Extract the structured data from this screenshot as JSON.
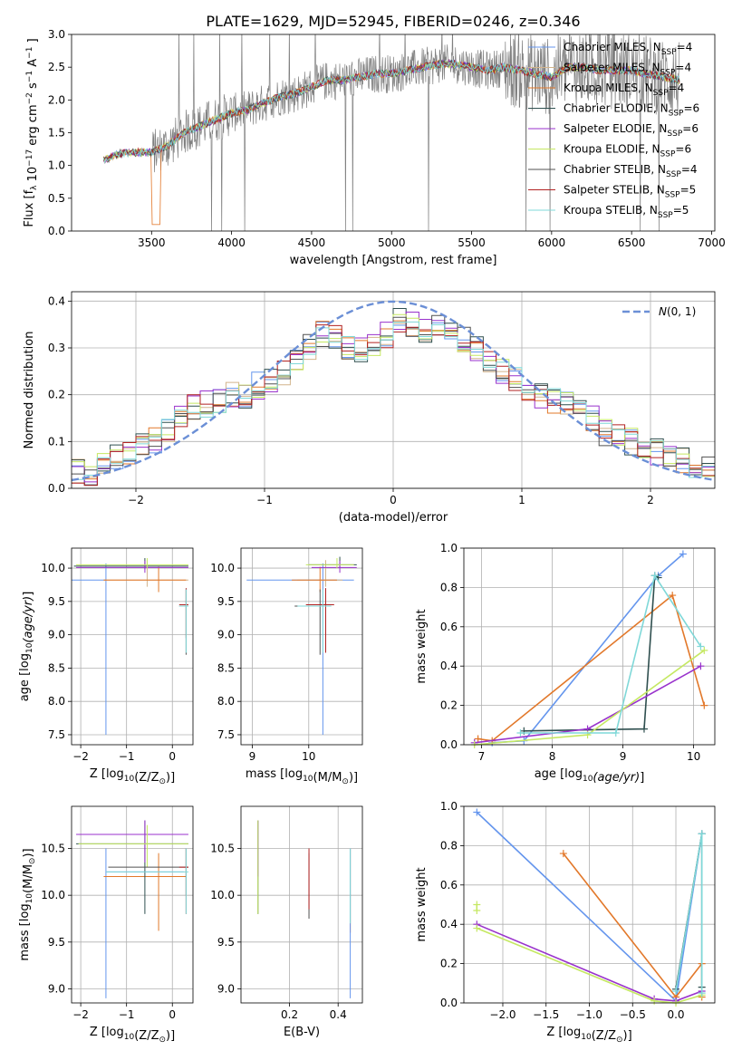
{
  "figure": {
    "title": "PLATE=1629, MJD=52945, FIBERID=0246, z=0.346"
  },
  "chart_data": [
    {
      "type": "line",
      "panel": "spectrum",
      "xlabel": "wavelength [Angstrom, rest frame]",
      "ylabel": "Flux [f_λ 10^-17 erg cm^-2 s^-1 A^-1]",
      "xlim": [
        3000,
        7020
      ],
      "ylim": [
        0,
        3.0
      ],
      "xticks": [
        3500,
        4000,
        4500,
        5000,
        5500,
        6000,
        6500,
        7000
      ],
      "yticks": [
        0.0,
        0.5,
        1.0,
        1.5,
        2.0,
        2.5,
        3.0
      ],
      "grid": false,
      "legend_placement": "top-right",
      "observed_spectrum": {
        "color": "#808080",
        "x": [
          3200,
          3300,
          3400,
          3500,
          3600,
          3700,
          3800,
          3900,
          4000,
          4100,
          4200,
          4300,
          4400,
          4500,
          4600,
          4700,
          4800,
          4900,
          5000,
          5100,
          5200,
          5300,
          5400,
          5500,
          5600,
          5700,
          5800,
          5900,
          6000,
          6100,
          6200,
          6300,
          6400,
          6500,
          6600,
          6700,
          6800
        ],
        "y": [
          1.08,
          1.18,
          1.2,
          1.2,
          1.3,
          1.5,
          1.6,
          1.7,
          1.8,
          1.85,
          1.95,
          2.05,
          2.1,
          2.2,
          2.3,
          2.3,
          2.35,
          2.4,
          2.4,
          2.45,
          2.5,
          2.55,
          2.55,
          2.5,
          2.45,
          2.5,
          2.45,
          2.4,
          2.35,
          2.5,
          2.5,
          2.45,
          2.45,
          2.45,
          2.4,
          2.35,
          2.3
        ]
      },
      "series": [
        {
          "label": "Chabrier MILES, N",
          "sub": "SSP",
          "suffix": "=4",
          "color": "#6495ed"
        },
        {
          "label": "Salpeter MILES, N",
          "sub": "SSP",
          "suffix": "=4",
          "color": "#d2b48c"
        },
        {
          "label": "Kroupa MILES, N",
          "sub": "SSP",
          "suffix": "=4",
          "color": "#e2782a"
        },
        {
          "label": "Chabrier ELODIE, N",
          "sub": "SSP",
          "suffix": "=6",
          "color": "#2f4f4f"
        },
        {
          "label": "Salpeter ELODIE, N",
          "sub": "SSP",
          "suffix": "=6",
          "color": "#9932cc"
        },
        {
          "label": "Kroupa ELODIE, N",
          "sub": "SSP",
          "suffix": "=6",
          "color": "#c5e862"
        },
        {
          "label": "Chabrier STELIB, N",
          "sub": "SSP",
          "suffix": "=4",
          "color": "#505050"
        },
        {
          "label": "Salpeter STELIB, N",
          "sub": "SSP",
          "suffix": "=5",
          "color": "#b22222"
        },
        {
          "label": "Kroupa STELIB, N",
          "sub": "SSP",
          "suffix": "=5",
          "color": "#7fd8d8"
        }
      ]
    },
    {
      "type": "line",
      "panel": "residual_histogram",
      "xlabel": "(data-model)/error",
      "ylabel": "Normed distribution",
      "xlim": [
        -2.5,
        2.5
      ],
      "ylim": [
        0,
        0.42
      ],
      "xticks": [
        -2,
        -1,
        0,
        1,
        2
      ],
      "yticks": [
        0.0,
        0.1,
        0.2,
        0.3,
        0.4
      ],
      "grid": true,
      "legend_placement": "top-right",
      "reference_curve": {
        "label": "N(0,1)",
        "color": "#6b8fd6",
        "style": "dashed",
        "mean": 0,
        "sigma": 1
      },
      "bin_width": 0.1,
      "histogram": {
        "x": [
          -2.5,
          -2.4,
          -2.3,
          -2.2,
          -2.1,
          -2.0,
          -1.9,
          -1.8,
          -1.7,
          -1.6,
          -1.5,
          -1.4,
          -1.3,
          -1.2,
          -1.1,
          -1.0,
          -0.9,
          -0.8,
          -0.7,
          -0.6,
          -0.5,
          -0.4,
          -0.3,
          -0.2,
          -0.1,
          0.0,
          0.1,
          0.2,
          0.3,
          0.4,
          0.5,
          0.6,
          0.7,
          0.8,
          0.9,
          1.0,
          1.1,
          1.2,
          1.3,
          1.4,
          1.5,
          1.6,
          1.7,
          1.8,
          1.9,
          2.0,
          2.1,
          2.2,
          2.3,
          2.4
        ],
        "y": [
          0.04,
          0.035,
          0.045,
          0.07,
          0.08,
          0.09,
          0.1,
          0.13,
          0.15,
          0.17,
          0.18,
          0.19,
          0.2,
          0.2,
          0.22,
          0.23,
          0.25,
          0.28,
          0.3,
          0.33,
          0.32,
          0.3,
          0.3,
          0.31,
          0.33,
          0.36,
          0.35,
          0.34,
          0.35,
          0.33,
          0.32,
          0.3,
          0.27,
          0.25,
          0.23,
          0.21,
          0.2,
          0.19,
          0.18,
          0.17,
          0.15,
          0.12,
          0.12,
          0.1,
          0.09,
          0.08,
          0.07,
          0.06,
          0.05,
          0.045
        ]
      }
    },
    {
      "type": "scatter",
      "panel": "age_vs_Z",
      "xlabel": "Z [log10(Z/Z⊙)]",
      "ylabel": "age  [log10(age/yr)]",
      "xlim": [
        -2.2,
        0.45
      ],
      "ylim": [
        7.35,
        10.3
      ],
      "xticks": [
        -2,
        -1,
        0
      ],
      "yticks": [
        7.5,
        8.0,
        8.5,
        9.0,
        9.5,
        10.0
      ],
      "grid": true,
      "points": [
        {
          "series": 0,
          "x": -1.45,
          "y": 9.82,
          "xerr": [
            0.75,
            0.0
          ],
          "yerr": [
            2.32,
            0.25
          ]
        },
        {
          "series": 1,
          "x": -0.55,
          "y": 9.82,
          "xerr": [
            0.95,
            0.9
          ],
          "yerr": [
            0.1,
            0.3
          ]
        },
        {
          "series": 2,
          "x": -0.3,
          "y": 9.82,
          "xerr": [
            1.2,
            0.6
          ],
          "yerr": [
            0.18,
            0.2
          ]
        },
        {
          "series": 3,
          "x": -0.6,
          "y": 10.03,
          "xerr": [
            1.55,
            0.95
          ],
          "yerr": [
            0.05,
            0.12
          ]
        },
        {
          "series": 4,
          "x": -0.6,
          "y": 10.01,
          "xerr": [
            1.5,
            0.95
          ],
          "yerr": [
            0.08,
            0.1
          ]
        },
        {
          "series": 5,
          "x": -0.55,
          "y": 10.05,
          "xerr": [
            1.55,
            0.9
          ],
          "yerr": [
            0.05,
            0.1
          ]
        },
        {
          "series": 6,
          "x": 0.3,
          "y": 9.43,
          "xerr": [
            0.15,
            0.05
          ],
          "yerr": [
            0.73,
            0.25
          ]
        },
        {
          "series": 7,
          "x": 0.3,
          "y": 9.45,
          "xerr": [
            0.15,
            0.05
          ],
          "yerr": [
            0.5,
            0.25
          ]
        },
        {
          "series": 8,
          "x": 0.3,
          "y": 9.43,
          "xerr": [
            0.15,
            0.05
          ],
          "yerr": [
            0.7,
            0.25
          ]
        }
      ]
    },
    {
      "type": "scatter",
      "panel": "age_vs_mass",
      "xlabel": "mass [log10(M/M⊙)]",
      "ylabel": "",
      "xlim": [
        8.8,
        10.95
      ],
      "ylim": [
        7.35,
        10.3
      ],
      "xticks": [
        9,
        10
      ],
      "yticks": [
        7.5,
        8.0,
        8.5,
        9.0,
        9.5,
        10.0
      ],
      "grid": true,
      "points": [
        {
          "series": 0,
          "x": 10.25,
          "y": 9.82,
          "xerr": [
            1.35,
            0.55
          ],
          "yerr": [
            2.32,
            0.25
          ]
        },
        {
          "series": 1,
          "x": 10.3,
          "y": 9.82,
          "xerr": [
            0.5,
            0.3
          ],
          "yerr": [
            0.1,
            0.3
          ]
        },
        {
          "series": 2,
          "x": 10.2,
          "y": 9.82,
          "xerr": [
            0.5,
            0.3
          ],
          "yerr": [
            0.18,
            0.2
          ]
        },
        {
          "series": 3,
          "x": 10.55,
          "y": 10.05,
          "xerr": [
            0.55,
            0.3
          ],
          "yerr": [
            0.05,
            0.12
          ]
        },
        {
          "series": 4,
          "x": 10.55,
          "y": 10.01,
          "xerr": [
            0.5,
            0.3
          ],
          "yerr": [
            0.08,
            0.1
          ]
        },
        {
          "series": 5,
          "x": 10.5,
          "y": 10.05,
          "xerr": [
            0.55,
            0.3
          ],
          "yerr": [
            0.05,
            0.1
          ]
        },
        {
          "series": 6,
          "x": 10.2,
          "y": 9.43,
          "xerr": [
            0.45,
            0.15
          ],
          "yerr": [
            0.73,
            0.25
          ]
        },
        {
          "series": 7,
          "x": 10.3,
          "y": 9.45,
          "xerr": [
            0.35,
            0.15
          ],
          "yerr": [
            0.72,
            0.25
          ]
        },
        {
          "series": 8,
          "x": 10.25,
          "y": 9.43,
          "xerr": [
            0.45,
            0.15
          ],
          "yerr": [
            0.7,
            0.25
          ]
        }
      ]
    },
    {
      "type": "line",
      "panel": "mass_weight_vs_age",
      "xlabel": "age  [log10(age/yr)]",
      "ylabel": "mass weight",
      "xlim": [
        6.75,
        10.3
      ],
      "ylim": [
        0,
        1.0
      ],
      "xticks": [
        7,
        8,
        9,
        10
      ],
      "yticks": [
        0.0,
        0.2,
        0.4,
        0.6,
        0.8,
        1.0
      ],
      "grid": true,
      "lines": [
        {
          "series": 0,
          "x": [
            7.15,
            7.6,
            9.5,
            9.85
          ],
          "y": [
            0.01,
            0.02,
            0.86,
            0.97
          ]
        },
        {
          "series": 2,
          "x": [
            6.95,
            7.15,
            9.7,
            10.15
          ],
          "y": [
            0.03,
            0.02,
            0.76,
            0.2
          ]
        },
        {
          "series": 3,
          "x": [
            7.6,
            9.3,
            9.45,
            9.5
          ],
          "y": [
            0.07,
            0.08,
            0.86,
            0.85
          ]
        },
        {
          "series": 4,
          "x": [
            6.9,
            8.5,
            10.1
          ],
          "y": [
            0.01,
            0.08,
            0.4
          ]
        },
        {
          "series": 5,
          "x": [
            6.9,
            8.5,
            10.15
          ],
          "y": [
            0.0,
            0.05,
            0.48
          ]
        },
        {
          "series": 8,
          "x": [
            7.55,
            8.9,
            9.45,
            10.1
          ],
          "y": [
            0.06,
            0.06,
            0.86,
            0.5
          ]
        }
      ]
    },
    {
      "type": "scatter",
      "panel": "mass_vs_Z",
      "xlabel": "Z [log10(Z/Z⊙)]",
      "ylabel": "mass [log10(M/M⊙)]",
      "xlim": [
        -2.2,
        0.45
      ],
      "ylim": [
        8.85,
        10.95
      ],
      "xticks": [
        -2,
        -1,
        0
      ],
      "yticks": [
        9.0,
        9.5,
        10.0,
        10.5
      ],
      "grid": true,
      "points": [
        {
          "series": 0,
          "x": -1.45,
          "y": 10.25,
          "xerr": [
            0.0,
            1.7
          ],
          "yerr": [
            1.35,
            0.25
          ]
        },
        {
          "series": 2,
          "x": -0.3,
          "y": 10.2,
          "xerr": [
            1.2,
            0.6
          ],
          "yerr": [
            0.58,
            0.25
          ]
        },
        {
          "series": 3,
          "x": -0.6,
          "y": 10.55,
          "xerr": [
            1.5,
            0.95
          ],
          "yerr": [
            0.75,
            0.25
          ]
        },
        {
          "series": 4,
          "x": -0.6,
          "y": 10.65,
          "xerr": [
            1.5,
            0.95
          ],
          "yerr": [
            0.3,
            0.15
          ]
        },
        {
          "series": 5,
          "x": -0.55,
          "y": 10.55,
          "xerr": [
            1.5,
            0.9
          ],
          "yerr": [
            0.25,
            0.2
          ]
        },
        {
          "series": 6,
          "x": 0.3,
          "y": 10.3,
          "xerr": [
            1.7,
            0.05
          ],
          "yerr": [
            0.3,
            0.2
          ]
        },
        {
          "series": 7,
          "x": 0.3,
          "y": 10.3,
          "xerr": [
            0.15,
            0.05
          ],
          "yerr": [
            0.5,
            0.2
          ]
        },
        {
          "series": 8,
          "x": 0.3,
          "y": 10.25,
          "xerr": [
            1.75,
            0.05
          ],
          "yerr": [
            0.45,
            0.25
          ]
        }
      ]
    },
    {
      "type": "scatter",
      "panel": "mass_vs_EBV",
      "xlabel": "E(B-V)",
      "ylabel": "",
      "xlim": [
        0.0,
        0.5
      ],
      "ylim": [
        8.85,
        10.95
      ],
      "xticks": [
        0.2,
        0.4
      ],
      "yticks": [
        9.0,
        9.5,
        10.0,
        10.5
      ],
      "grid": true,
      "points": [
        {
          "series": 3,
          "x": 0.07,
          "y": 10.4,
          "xerr": [
            0.0,
            0.0
          ],
          "yerr": [
            0.6,
            0.4
          ]
        },
        {
          "series": 4,
          "x": 0.07,
          "y": 10.6,
          "xerr": [
            0.0,
            0.0
          ],
          "yerr": [
            0.4,
            0.2
          ]
        },
        {
          "series": 5,
          "x": 0.07,
          "y": 10.35,
          "xerr": [
            0.0,
            0.0
          ],
          "yerr": [
            0.55,
            0.45
          ]
        },
        {
          "series": 6,
          "x": 0.28,
          "y": 10.2,
          "xerr": [
            0.0,
            0.0
          ],
          "yerr": [
            0.45,
            0.25
          ]
        },
        {
          "series": 7,
          "x": 0.28,
          "y": 10.3,
          "xerr": [
            0.0,
            0.0
          ],
          "yerr": [
            0.45,
            0.2
          ]
        },
        {
          "series": 2,
          "x": 0.45,
          "y": 10.2,
          "xerr": [
            0.0,
            0.0
          ],
          "yerr": [
            0.6,
            0.3
          ]
        },
        {
          "series": 0,
          "x": 0.45,
          "y": 10.25,
          "xerr": [
            0.0,
            0.0
          ],
          "yerr": [
            1.35,
            0.25
          ]
        },
        {
          "series": 8,
          "x": 0.45,
          "y": 10.2,
          "xerr": [
            0.0,
            0.0
          ],
          "yerr": [
            0.5,
            0.3
          ]
        }
      ]
    },
    {
      "type": "line",
      "panel": "mass_weight_vs_Z",
      "xlabel": "Z [log10(Z/Z⊙)]",
      "ylabel": "mass weight",
      "xlim": [
        -2.45,
        0.45
      ],
      "ylim": [
        0,
        1.0
      ],
      "xticks": [
        -2.0,
        -1.5,
        -1.0,
        -0.5,
        0.0
      ],
      "yticks": [
        0.0,
        0.2,
        0.4,
        0.6,
        0.8,
        1.0
      ],
      "grid": true,
      "lines": [
        {
          "series": 0,
          "x": [
            -2.3,
            0.0,
            0.3
          ],
          "y": [
            0.97,
            0.01,
            0.86
          ]
        },
        {
          "series": 2,
          "x": [
            -1.3,
            0.0,
            0.3,
            0.3
          ],
          "y": [
            0.76,
            0.03,
            0.2,
            0.03
          ]
        },
        {
          "series": 4,
          "x": [
            -2.3,
            -0.25,
            0.0,
            0.3
          ],
          "y": [
            0.4,
            0.02,
            0.01,
            0.06
          ]
        },
        {
          "series": 5,
          "x": [
            -2.3,
            -0.25,
            0.0,
            0.3
          ],
          "y": [
            0.38,
            0.01,
            0.0,
            0.04
          ]
        },
        {
          "series": 5,
          "x": [
            -2.3,
            -2.3
          ],
          "y": [
            0.47,
            0.5
          ]
        },
        {
          "series": 3,
          "x": [
            0.0,
            0.3,
            0.3
          ],
          "y": [
            0.07,
            0.86,
            0.08
          ]
        },
        {
          "series": 8,
          "x": [
            0.0,
            0.3,
            0.3
          ],
          "y": [
            0.06,
            0.86,
            0.05
          ]
        }
      ]
    }
  ]
}
